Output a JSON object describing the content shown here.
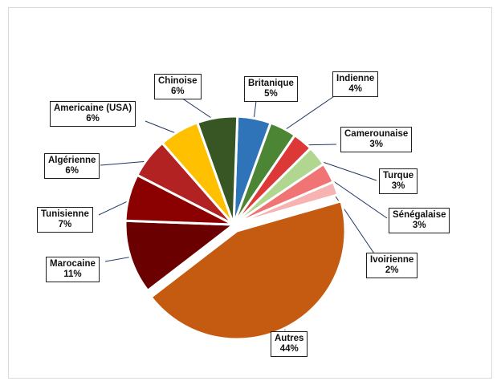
{
  "chart_data": {
    "type": "pie",
    "title": "",
    "slices": [
      {
        "label": "Britanique",
        "value": 5,
        "display": "5%",
        "color": "#2f73b9"
      },
      {
        "label": "Indienne",
        "value": 4,
        "display": "4%",
        "color": "#4c8534"
      },
      {
        "label": "Camerounaise",
        "value": 3,
        "display": "3%",
        "color": "#dd3838"
      },
      {
        "label": "Turque",
        "value": 3,
        "display": "3%",
        "color": "#b1d690"
      },
      {
        "label": "Sénégalaise",
        "value": 3,
        "display": "3%",
        "color": "#f07474"
      },
      {
        "label": "Ivoirienne",
        "value": 2,
        "display": "2%",
        "color": "#f7b2b2"
      },
      {
        "label": "Autres",
        "value": 44,
        "display": "44%",
        "color": "#c55a11"
      },
      {
        "label": "Marocaine",
        "value": 11,
        "display": "11%",
        "color": "#6b0000"
      },
      {
        "label": "Tunisienne",
        "value": 7,
        "display": "7%",
        "color": "#8b0000"
      },
      {
        "label": "Algérienne",
        "value": 6,
        "display": "6%",
        "color": "#b22222"
      },
      {
        "label": "Americaine (USA)",
        "value": 6,
        "display": "6%",
        "color": "#ffc000"
      },
      {
        "label": "Chinoise",
        "value": 6,
        "display": "6%",
        "color": "#375623"
      }
    ]
  }
}
